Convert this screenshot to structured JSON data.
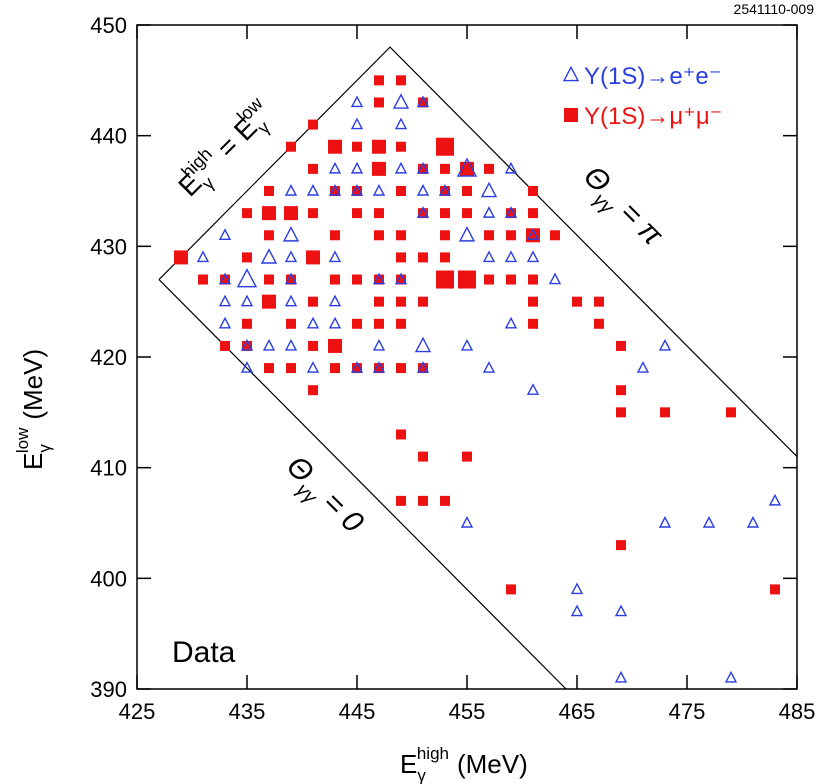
{
  "chart_data": {
    "type": "scatter",
    "figure_id": "2541110-009",
    "x_label": {
      "base": "E",
      "sub": "γ",
      "sup": "high",
      "unit": "(MeV)"
    },
    "y_label": {
      "base": "E",
      "sub": "γ",
      "sup": "low",
      "unit": "(MeV)"
    },
    "xlim": [
      425,
      485
    ],
    "ylim": [
      390,
      450
    ],
    "xticks": [
      425,
      435,
      445,
      455,
      465,
      475,
      485
    ],
    "yticks": [
      390,
      400,
      410,
      420,
      430,
      440,
      450
    ],
    "legend": "top-right",
    "annotations": [
      {
        "parts": [
          "E",
          "γ",
          "high",
          " = E",
          "γ",
          "low"
        ],
        "style": [
          "base",
          "sub",
          "sup",
          "base",
          "sub",
          "sup"
        ]
      },
      {
        "parts": [
          "Θ",
          "γγ",
          " = π"
        ],
        "style": [
          "base",
          "sub",
          "base"
        ]
      },
      {
        "parts": [
          "Θ",
          "γγ",
          " = 0"
        ],
        "style": [
          "base",
          "sub",
          "base"
        ]
      },
      {
        "parts": [
          "Data"
        ],
        "style": [
          "base"
        ]
      }
    ],
    "boundaries": [
      {
        "x": [
          427,
          448,
          485
        ],
        "y": [
          427,
          448,
          411
        ]
      },
      {
        "x": [
          427,
          464
        ],
        "y": [
          427,
          390
        ]
      }
    ],
    "series": [
      {
        "name": "Υ(1S)→e⁺e⁻",
        "color": "#2b3fe0",
        "marker": "triangle",
        "x": [
          431,
          433,
          433,
          433,
          433,
          435,
          435,
          435,
          435,
          437,
          437,
          439,
          439,
          439,
          439,
          439,
          439,
          441,
          441,
          441,
          443,
          443,
          443,
          443,
          443,
          445,
          445,
          445,
          445,
          445,
          447,
          447,
          447,
          447,
          449,
          449,
          449,
          449,
          451,
          451,
          451,
          451,
          451,
          451,
          453,
          455,
          455,
          455,
          455,
          457,
          457,
          457,
          457,
          459,
          459,
          459,
          459,
          461,
          461,
          461,
          463,
          465,
          465,
          469,
          469,
          471,
          473,
          473,
          477,
          479,
          481,
          483
        ],
        "y": [
          429,
          431,
          427,
          425,
          423,
          427,
          425,
          421,
          419,
          429,
          421,
          435,
          431,
          429,
          427,
          425,
          421,
          435,
          423,
          419,
          435,
          437,
          429,
          425,
          423,
          443,
          441,
          437,
          435,
          419,
          435,
          427,
          421,
          419,
          443,
          441,
          437,
          427,
          443,
          437,
          435,
          433,
          421,
          419,
          435,
          437,
          431,
          421,
          405,
          435,
          433,
          429,
          419,
          437,
          433,
          429,
          423,
          431,
          429,
          417,
          427,
          399,
          397,
          397,
          391,
          419,
          421,
          405,
          405,
          391,
          405,
          407
        ],
        "sizes": [
          1,
          1,
          1,
          1,
          1,
          3,
          1,
          1,
          1,
          2,
          1,
          1,
          2,
          1,
          1,
          1,
          1,
          1,
          1,
          1,
          1,
          1,
          1,
          1,
          1,
          1,
          1,
          1,
          1,
          1,
          1,
          1,
          1,
          1,
          2,
          1,
          1,
          1,
          1,
          1,
          1,
          1,
          2,
          1,
          1,
          3,
          2,
          1,
          1,
          2,
          1,
          1,
          1,
          1,
          1,
          1,
          1,
          1,
          1,
          1,
          1,
          1,
          1,
          1,
          1,
          1,
          1,
          1,
          1,
          1,
          1,
          1
        ]
      },
      {
        "name": "Υ(1S)→μ⁺μ⁻",
        "color": "#ee1111",
        "marker": "square",
        "x": [
          429,
          431,
          433,
          433,
          435,
          435,
          435,
          435,
          437,
          437,
          437,
          437,
          437,
          437,
          439,
          439,
          439,
          439,
          439,
          441,
          441,
          441,
          441,
          441,
          441,
          441,
          443,
          443,
          443,
          443,
          443,
          443,
          445,
          445,
          445,
          445,
          445,
          445,
          447,
          447,
          447,
          447,
          447,
          447,
          447,
          447,
          447,
          447,
          449,
          449,
          449,
          449,
          449,
          449,
          449,
          449,
          449,
          449,
          449,
          451,
          451,
          451,
          451,
          451,
          451,
          451,
          451,
          453,
          453,
          453,
          453,
          453,
          453,
          453,
          453,
          455,
          455,
          455,
          455,
          455,
          457,
          457,
          457,
          459,
          459,
          459,
          459,
          461,
          461,
          461,
          461,
          461,
          461,
          463,
          465,
          467,
          467,
          469,
          469,
          469,
          469,
          473,
          479,
          483
        ],
        "y": [
          429,
          427,
          427,
          421,
          433,
          429,
          423,
          421,
          435,
          433,
          431,
          427,
          425,
          419,
          439,
          433,
          427,
          423,
          419,
          441,
          437,
          433,
          429,
          425,
          421,
          417,
          439,
          435,
          431,
          427,
          421,
          419,
          439,
          435,
          433,
          427,
          423,
          419,
          445,
          443,
          439,
          437,
          433,
          431,
          427,
          425,
          423,
          419,
          445,
          439,
          435,
          431,
          429,
          427,
          425,
          423,
          419,
          413,
          407,
          443,
          437,
          433,
          429,
          425,
          419,
          411,
          407,
          439,
          437,
          435,
          433,
          431,
          429,
          427,
          407,
          437,
          435,
          433,
          427,
          411,
          437,
          431,
          427,
          433,
          431,
          427,
          399,
          435,
          433,
          431,
          427,
          425,
          423,
          431,
          425,
          425,
          423,
          421,
          417,
          415,
          403,
          415,
          415,
          399
        ],
        "sizes": [
          2,
          1,
          1,
          1,
          1,
          1,
          1,
          1,
          1,
          2,
          1,
          1,
          2,
          1,
          1,
          2,
          1,
          1,
          1,
          1,
          1,
          1,
          2,
          1,
          1,
          1,
          2,
          1,
          1,
          1,
          2,
          1,
          1,
          1,
          1,
          1,
          1,
          1,
          1,
          1,
          2,
          2,
          1,
          1,
          1,
          1,
          1,
          1,
          1,
          1,
          1,
          1,
          1,
          1,
          1,
          1,
          1,
          1,
          1,
          1,
          1,
          1,
          1,
          1,
          1,
          1,
          1,
          3,
          1,
          1,
          1,
          1,
          1,
          3,
          1,
          2,
          1,
          1,
          3,
          1,
          1,
          1,
          1,
          1,
          1,
          1,
          1,
          1,
          1,
          2,
          1,
          1,
          1,
          1,
          1,
          1,
          1,
          1,
          1,
          1,
          1,
          1,
          1,
          1
        ]
      }
    ]
  }
}
